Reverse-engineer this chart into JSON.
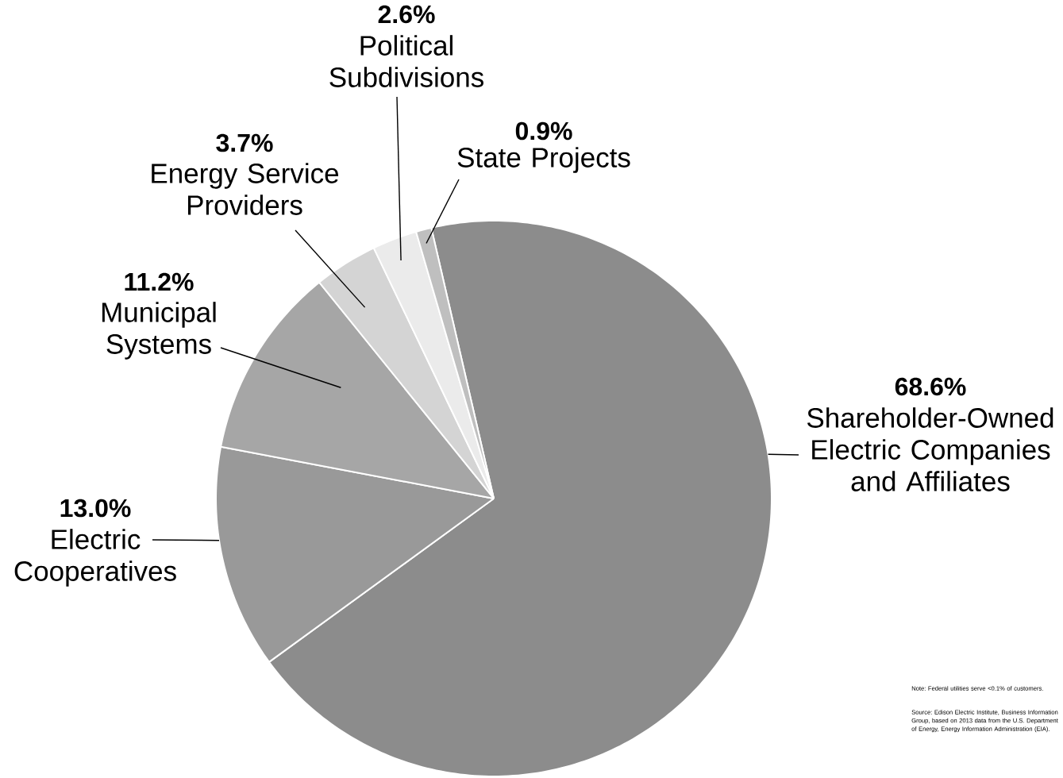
{
  "chart_data": {
    "type": "pie",
    "categories": [
      "Shareholder-Owned Electric Companies and Affiliates",
      "Electric Cooperatives",
      "Municipal Systems",
      "Energy Service Providers",
      "Political Subdivisions",
      "State Projects"
    ],
    "values": [
      68.6,
      13.0,
      11.2,
      3.7,
      2.6,
      0.9
    ],
    "colors": [
      "#8c8c8c",
      "#999999",
      "#a6a6a6",
      "#d4d4d4",
      "#ebebeb",
      "#bfbfbf"
    ],
    "value_labels": [
      "68.6%",
      "13.0%",
      "11.2%",
      "3.7%",
      "2.6%",
      "0.9%"
    ],
    "annotations": [
      "Note: Federal utilities serve <0.1% of customers.",
      "Source: Edison Electric Institute, Business Information Group, based on 2013 data from the U.S. Department of Energy, Energy Information Administration (EIA)."
    ]
  }
}
